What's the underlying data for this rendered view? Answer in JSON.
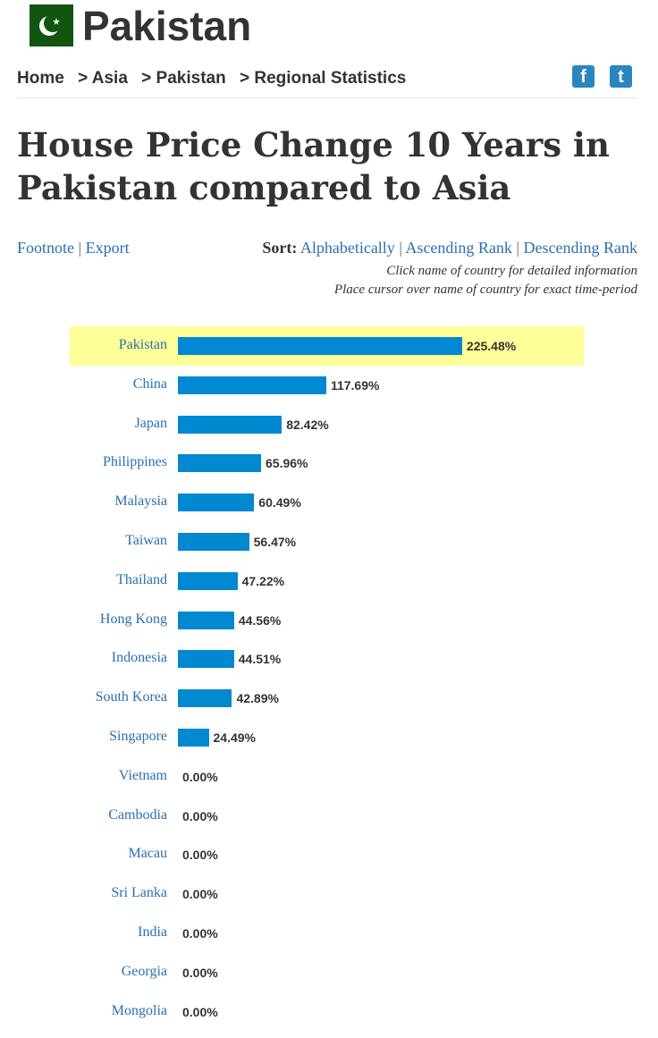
{
  "header": {
    "title": "Pakistan",
    "flag": "pakistan-flag"
  },
  "breadcrumb": [
    "Home",
    "> Asia",
    "> Pakistan",
    "> Regional Statistics"
  ],
  "social": {
    "facebook": "f",
    "twitter": "t"
  },
  "page_title": "House Price Change 10 Years in Pakistan compared to Asia",
  "links": {
    "footnote": "Footnote",
    "export": "Export",
    "sep": "|"
  },
  "sort": {
    "label": "Sort:",
    "alphabetically": "Alphabetically",
    "ascending": "Ascending Rank",
    "descending": "Descending Rank"
  },
  "notes": [
    "Click name of country for detailed information",
    "Place cursor over name of country for exact time-period"
  ],
  "colors": {
    "bar": "#0088d1",
    "highlight": "#ffff99"
  },
  "chart_data": {
    "type": "bar",
    "orientation": "horizontal",
    "highlight": "Pakistan",
    "unit": "%",
    "categories": [
      "Pakistan",
      "China",
      "Japan",
      "Philippines",
      "Malaysia",
      "Taiwan",
      "Thailand",
      "Hong Kong",
      "Indonesia",
      "South Korea",
      "Singapore",
      "Vietnam",
      "Cambodia",
      "Macau",
      "Sri Lanka",
      "India",
      "Georgia",
      "Mongolia"
    ],
    "values": [
      225.48,
      117.69,
      82.42,
      65.96,
      60.49,
      56.47,
      47.22,
      44.56,
      44.51,
      42.89,
      24.49,
      0,
      0,
      0,
      0,
      0,
      0,
      0
    ],
    "labels": [
      "225.48%",
      "117.69%",
      "82.42%",
      "65.96%",
      "60.49%",
      "56.47%",
      "47.22%",
      "44.56%",
      "44.51%",
      "42.89%",
      "24.49%",
      "0.00%",
      "0.00%",
      "0.00%",
      "0.00%",
      "0.00%",
      "0.00%",
      "0.00%"
    ]
  }
}
